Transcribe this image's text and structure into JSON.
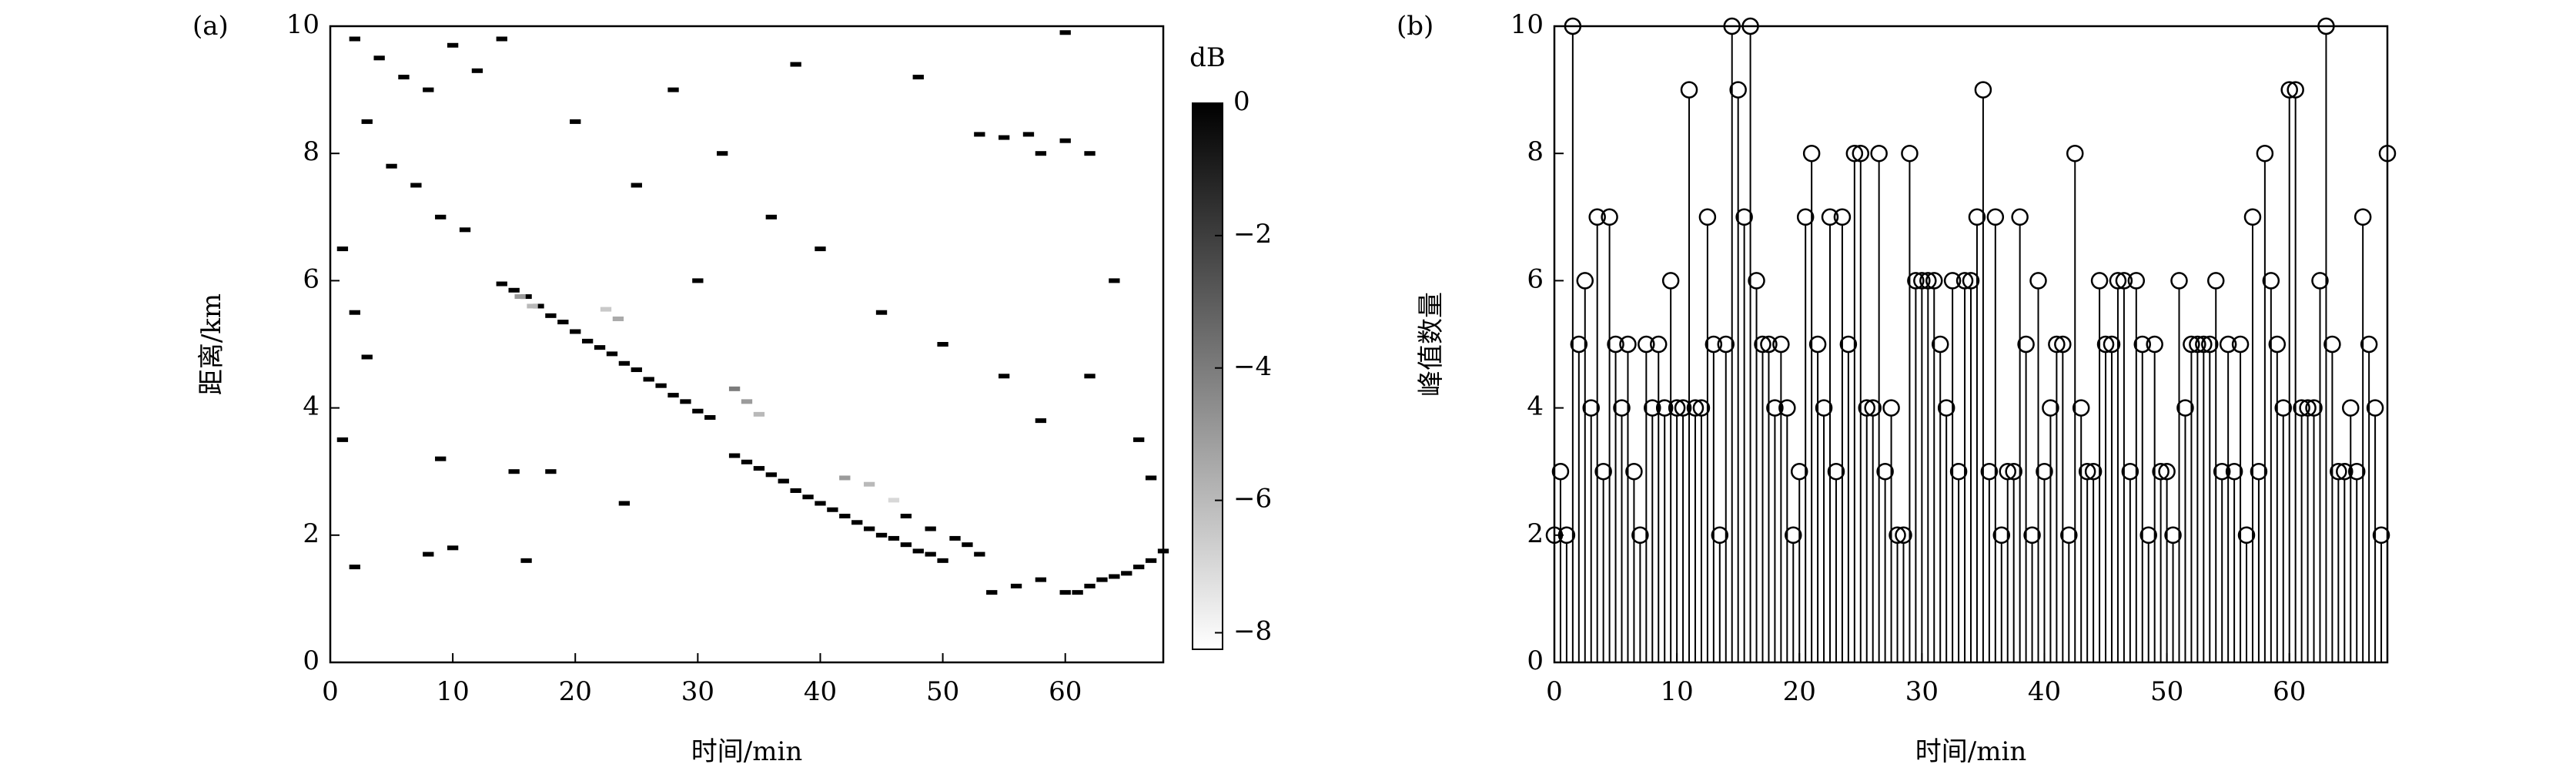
{
  "chart_data": [
    {
      "type": "heatmap",
      "label": "(a)",
      "xlabel": "时间/min",
      "ylabel": "距离/km",
      "xlim": [
        0,
        68
      ],
      "ylim": [
        0,
        10
      ],
      "xticks": [
        0,
        10,
        20,
        30,
        40,
        50,
        60
      ],
      "yticks": [
        0,
        2,
        4,
        6,
        8,
        10
      ],
      "colormap": [
        "#ffffff",
        "#000000"
      ],
      "colorbar": {
        "label": "dB",
        "lim": [
          -8.25,
          0
        ],
        "ticks": [
          0,
          {
            "value": -2,
            "label": "−2"
          },
          {
            "value": -4,
            "label": "−4"
          },
          {
            "value": -6,
            "label": "−6"
          },
          {
            "value": -8,
            "label": "−8"
          }
        ]
      },
      "x": [
        14,
        15,
        16,
        17,
        18,
        19,
        20,
        21,
        22,
        23,
        24,
        25,
        26,
        27,
        28,
        29,
        30,
        31,
        15.5,
        16.5,
        22.5,
        23.5,
        33,
        34,
        35,
        33,
        34,
        35,
        36,
        37,
        38,
        39,
        40,
        41,
        42,
        43,
        44,
        45,
        46,
        47,
        48,
        49,
        50,
        47,
        49,
        51,
        52,
        53,
        42,
        44,
        46,
        54,
        56,
        58,
        60,
        61,
        62,
        63,
        64,
        65,
        66,
        67,
        68,
        53,
        55,
        57,
        58,
        60,
        62,
        2,
        4,
        6,
        8,
        10,
        12,
        14,
        3,
        5,
        7,
        9,
        11,
        1,
        2,
        3,
        1,
        2,
        8,
        10,
        16,
        9,
        15,
        20,
        25,
        28,
        32,
        36,
        40,
        45,
        50,
        55,
        58,
        62,
        66,
        67,
        38,
        48,
        60,
        64,
        18,
        24,
        30
      ],
      "y": [
        5.95,
        5.85,
        5.75,
        5.6,
        5.45,
        5.35,
        5.2,
        5.05,
        4.95,
        4.85,
        4.7,
        4.6,
        4.45,
        4.35,
        4.2,
        4.1,
        3.95,
        3.85,
        5.75,
        5.6,
        5.55,
        5.4,
        4.3,
        4.1,
        3.9,
        3.25,
        3.15,
        3.05,
        2.95,
        2.85,
        2.7,
        2.6,
        2.5,
        2.4,
        2.3,
        2.2,
        2.1,
        2.0,
        1.95,
        1.85,
        1.75,
        1.7,
        1.6,
        2.3,
        2.1,
        1.95,
        1.85,
        1.7,
        2.9,
        2.8,
        2.55,
        1.1,
        1.2,
        1.3,
        1.1,
        1.1,
        1.2,
        1.3,
        1.35,
        1.4,
        1.5,
        1.6,
        1.75,
        8.3,
        8.25,
        8.3,
        8.0,
        8.2,
        8.0,
        9.8,
        9.5,
        9.2,
        9.0,
        9.7,
        9.3,
        9.8,
        8.5,
        7.8,
        7.5,
        7.0,
        6.8,
        6.5,
        5.5,
        4.8,
        3.5,
        1.5,
        1.7,
        1.8,
        1.6,
        3.2,
        3.0,
        8.5,
        7.5,
        9.0,
        8.0,
        7.0,
        6.5,
        5.5,
        5.0,
        4.5,
        3.8,
        4.5,
        3.5,
        2.9,
        9.4,
        9.2,
        9.9,
        6.0,
        3.0,
        2.5,
        6.0
      ],
      "values": [
        0,
        0,
        0,
        0,
        0,
        0,
        0,
        0,
        0,
        0,
        0,
        0,
        0,
        0,
        0,
        0,
        0,
        0,
        -5,
        -6,
        -6.5,
        -5.5,
        -4,
        -5,
        -6,
        0,
        0,
        0,
        0,
        0,
        0,
        0,
        0,
        0,
        0,
        0,
        0,
        0,
        0,
        0,
        0,
        0,
        0,
        0,
        0,
        0,
        0,
        0,
        -5,
        -6,
        -7,
        0,
        0,
        0,
        0,
        0,
        0,
        0,
        0,
        0,
        0,
        0,
        0,
        0,
        0,
        0,
        0,
        0,
        0,
        0,
        0,
        0,
        0,
        0,
        0,
        0,
        0,
        0,
        0,
        0,
        0,
        0,
        0,
        0,
        0,
        0,
        0,
        0,
        0,
        0,
        0,
        0,
        0,
        0,
        0,
        0,
        0,
        0,
        0,
        0,
        0,
        0,
        0,
        0,
        0,
        0,
        0,
        0,
        0,
        0,
        0
      ]
    },
    {
      "type": "stem",
      "label": "(b)",
      "xlabel": "时间/min",
      "ylabel": "峰值数量",
      "color": "#000000",
      "xlim": [
        0,
        68
      ],
      "ylim": [
        0,
        10
      ],
      "xticks": [
        0,
        10,
        20,
        30,
        40,
        50,
        60
      ],
      "yticks": [
        0,
        2,
        4,
        6,
        8,
        10
      ],
      "x": [
        0,
        0.5,
        1,
        1.5,
        2,
        2.5,
        3,
        3.5,
        4,
        4.5,
        5,
        5.5,
        6,
        6.5,
        7,
        7.5,
        8,
        8.5,
        9,
        9.5,
        10,
        10.5,
        11,
        11.5,
        12,
        12.5,
        13,
        13.5,
        14,
        14.5,
        15,
        15.5,
        16,
        16.5,
        17,
        17.5,
        18,
        18.5,
        19,
        19.5,
        20,
        20.5,
        21,
        21.5,
        22,
        22.5,
        23,
        23.5,
        24,
        24.5,
        25,
        25.5,
        26,
        26.5,
        27,
        27.5,
        28,
        28.5,
        29,
        29.5,
        30,
        30.5,
        31,
        31.5,
        32,
        32.5,
        33,
        33.5,
        34,
        34.5,
        35,
        35.5,
        36,
        36.5,
        37,
        37.5,
        38,
        38.5,
        39,
        39.5,
        40,
        40.5,
        41,
        41.5,
        42,
        42.5,
        43,
        43.5,
        44,
        44.5,
        45,
        45.5,
        46,
        46.5,
        47,
        47.5,
        48,
        48.5,
        49,
        49.5,
        50,
        50.5,
        51,
        51.5,
        52,
        52.5,
        53,
        53.5,
        54,
        54.5,
        55,
        55.5,
        56,
        56.5,
        57,
        57.5,
        58,
        58.5,
        59,
        59.5,
        60,
        60.5,
        61,
        61.5,
        62,
        62.5,
        63,
        63.5,
        64,
        64.5,
        65,
        65.5,
        66,
        66.5,
        67,
        67.5,
        68
      ],
      "values": [
        2,
        3,
        2,
        10,
        5,
        6,
        4,
        7,
        3,
        7,
        5,
        4,
        5,
        3,
        2,
        5,
        4,
        5,
        4,
        6,
        4,
        4,
        9,
        4,
        4,
        7,
        5,
        2,
        5,
        10,
        9,
        7,
        10,
        6,
        5,
        5,
        4,
        5,
        4,
        2,
        3,
        7,
        8,
        5,
        4,
        7,
        3,
        7,
        5,
        8,
        8,
        4,
        4,
        8,
        3,
        4,
        2,
        2,
        8,
        6,
        6,
        6,
        6,
        5,
        4,
        6,
        3,
        6,
        6,
        7,
        9,
        3,
        7,
        2,
        3,
        3,
        7,
        5,
        2,
        6,
        3,
        4,
        5,
        5,
        2,
        8,
        4,
        3,
        3,
        6,
        5,
        5,
        6,
        6,
        3,
        6,
        5,
        2,
        5,
        3,
        3,
        2,
        6,
        4,
        5,
        5,
        5,
        5,
        6,
        3,
        5,
        3,
        5,
        2,
        7,
        3,
        8,
        6,
        5,
        4,
        9,
        9,
        4,
        4,
        4,
        6,
        10,
        5,
        3,
        3,
        4,
        3,
        7,
        5,
        4,
        2,
        8
      ]
    }
  ]
}
